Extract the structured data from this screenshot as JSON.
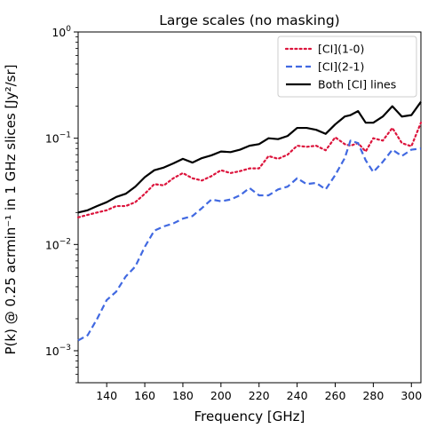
{
  "chart_data": {
    "type": "line",
    "title": "Large scales (no masking)",
    "xlabel": "Frequency [GHz]",
    "ylabel": "P(k) @ 0.25 acrmin⁻¹ in 1 GHz slices [Jy²/sr]",
    "xlim": [
      125,
      305
    ],
    "ylim": [
      0.0005,
      1.0
    ],
    "yscale": "log",
    "legend_position": "top-right",
    "grid": false,
    "x_ticks": [
      140,
      160,
      180,
      200,
      220,
      240,
      260,
      280,
      300
    ],
    "x_tick_labels": [
      "140",
      "160",
      "180",
      "200",
      "220",
      "240",
      "260",
      "280",
      "300"
    ],
    "y_ticks": [
      0.001,
      0.01,
      0.1,
      1
    ],
    "y_tick_bases": [
      "10",
      "10",
      "10",
      "10"
    ],
    "y_tick_exps": [
      "−3",
      "−2",
      "−1",
      "0"
    ],
    "x": [
      125,
      130,
      135,
      140,
      145,
      150,
      155,
      160,
      165,
      170,
      175,
      180,
      185,
      190,
      195,
      200,
      205,
      210,
      215,
      220,
      225,
      230,
      235,
      240,
      245,
      250,
      255,
      260,
      265,
      268,
      272,
      276,
      280,
      285,
      290,
      295,
      300,
      305
    ],
    "series": [
      {
        "name": "[CI](1-0)",
        "color": "#dc143c",
        "style": "dotted",
        "values": [
          0.018,
          0.019,
          0.02,
          0.021,
          0.023,
          0.023,
          0.025,
          0.03,
          0.037,
          0.036,
          0.042,
          0.047,
          0.042,
          0.04,
          0.044,
          0.05,
          0.047,
          0.049,
          0.052,
          0.052,
          0.068,
          0.064,
          0.07,
          0.085,
          0.083,
          0.085,
          0.077,
          0.102,
          0.088,
          0.085,
          0.09,
          0.075,
          0.1,
          0.095,
          0.125,
          0.09,
          0.084,
          0.14
        ]
      },
      {
        "name": "[CI](2-1)",
        "color": "#4169e1",
        "style": "dashed",
        "values": [
          0.00125,
          0.0014,
          0.002,
          0.003,
          0.0036,
          0.005,
          0.0062,
          0.0095,
          0.0135,
          0.0148,
          0.0158,
          0.0175,
          0.0185,
          0.022,
          0.0265,
          0.0255,
          0.0265,
          0.029,
          0.034,
          0.029,
          0.029,
          0.033,
          0.035,
          0.042,
          0.037,
          0.038,
          0.033,
          0.045,
          0.065,
          0.095,
          0.09,
          0.062,
          0.048,
          0.06,
          0.078,
          0.068,
          0.078,
          0.08
        ]
      },
      {
        "name": "Both [CI] lines",
        "color": "#000000",
        "style": "solid",
        "values": [
          0.02,
          0.021,
          0.023,
          0.025,
          0.028,
          0.03,
          0.035,
          0.043,
          0.05,
          0.053,
          0.058,
          0.064,
          0.059,
          0.065,
          0.069,
          0.075,
          0.074,
          0.078,
          0.085,
          0.088,
          0.1,
          0.098,
          0.105,
          0.125,
          0.125,
          0.12,
          0.11,
          0.135,
          0.16,
          0.165,
          0.18,
          0.14,
          0.14,
          0.16,
          0.2,
          0.16,
          0.165,
          0.22
        ]
      }
    ]
  }
}
